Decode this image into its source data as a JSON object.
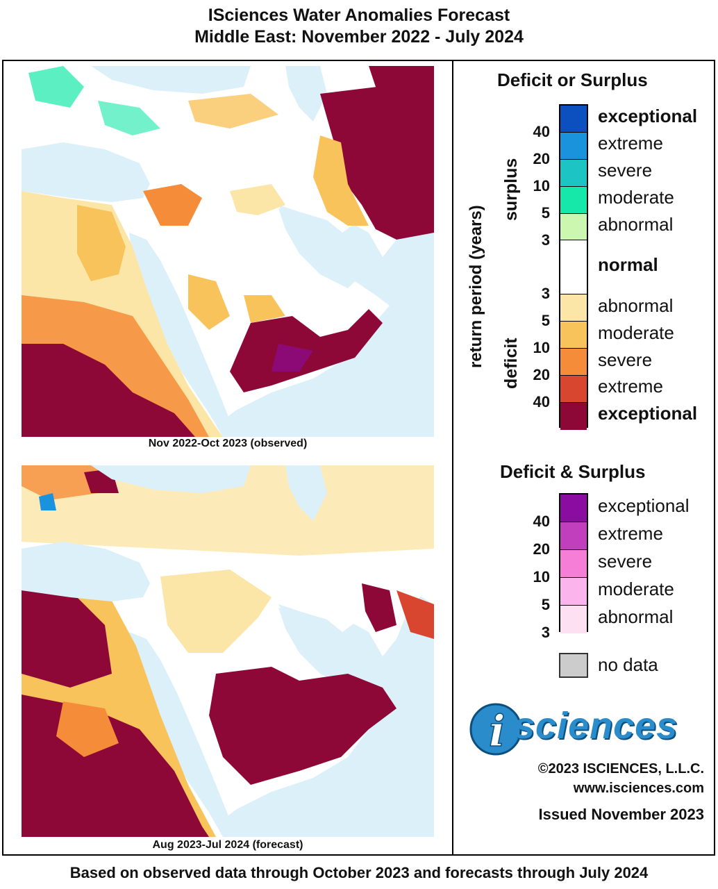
{
  "title_line1": "ISciences Water Anomalies Forecast",
  "title_line2": "Middle East: November 2022 - July 2024",
  "maps": [
    {
      "caption": "Nov 2022-Oct 2023 (observed)"
    },
    {
      "caption": "Aug 2023-Jul 2024 (forecast)"
    }
  ],
  "footer": "Based on observed data through October 2023 and forecasts through July 2024",
  "legend": {
    "heading1": "Deficit or Surplus",
    "axis_label": "return period (years)",
    "surplus_label": "surplus",
    "deficit_label": "deficit",
    "surplus_classes": [
      {
        "label": "exceptional",
        "color": "#0c4fbf"
      },
      {
        "label": "extreme",
        "color": "#1b93dc"
      },
      {
        "label": "severe",
        "color": "#1cc4c4"
      },
      {
        "label": "moderate",
        "color": "#15e8a8"
      },
      {
        "label": "abnormal",
        "color": "#ccf7b0"
      }
    ],
    "normal_label": "normal",
    "normal_color": "#ffffff",
    "deficit_classes": [
      {
        "label": "abnormal",
        "color": "#fbe6a8"
      },
      {
        "label": "moderate",
        "color": "#f9c35c"
      },
      {
        "label": "severe",
        "color": "#f58c3a"
      },
      {
        "label": "extreme",
        "color": "#d94630"
      },
      {
        "label": "exceptional",
        "color": "#8d0837"
      }
    ],
    "surplus_ticks": [
      "40",
      "20",
      "10",
      "5",
      "3"
    ],
    "deficit_ticks": [
      "3",
      "5",
      "10",
      "20",
      "40"
    ],
    "heading2": "Deficit & Surplus",
    "both_classes": [
      {
        "label": "exceptional",
        "color": "#8b0ca0"
      },
      {
        "label": "extreme",
        "color": "#c13fbd"
      },
      {
        "label": "severe",
        "color": "#f77ed6"
      },
      {
        "label": "moderate",
        "color": "#fbb5ec"
      },
      {
        "label": "abnormal",
        "color": "#fde0f2"
      }
    ],
    "both_ticks": [
      "40",
      "20",
      "10",
      "5",
      "3"
    ],
    "nodata_label": "no data",
    "nodata_color": "#cccccc"
  },
  "logo": {
    "letter": "i",
    "text": "sciences"
  },
  "credits": {
    "copyright": "©2023 ISCIENCES, L.L.C.",
    "url": "www.isciences.com",
    "issued": "Issued November 2023"
  }
}
